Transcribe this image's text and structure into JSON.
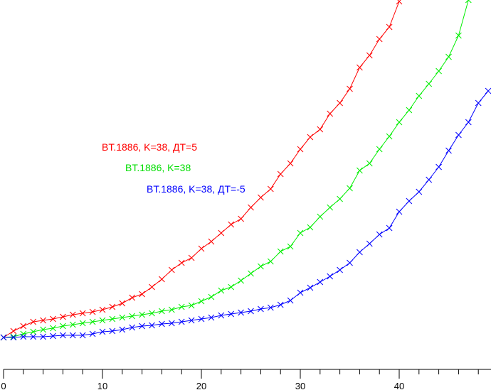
{
  "chart_data": {
    "type": "line",
    "title": "",
    "xlabel": "",
    "ylabel": "",
    "xlim": [
      0,
      49.3
    ],
    "ylim": [
      -45,
      475
    ],
    "xticks": [
      0,
      10,
      20,
      30,
      40
    ],
    "xtick_labels": [
      "0",
      "10",
      "20",
      "30",
      "40"
    ],
    "minor_xtick_step": 2,
    "grid": false,
    "series": [
      {
        "name": "BT.1886, K=38, ДТ=5",
        "color": "#ff0000",
        "x": [
          0,
          1,
          2,
          3,
          4,
          5,
          6,
          7,
          8,
          9,
          10,
          11,
          12,
          13,
          14,
          15,
          16,
          17,
          18,
          19,
          20,
          21,
          22,
          23,
          24,
          25,
          26,
          27,
          28,
          29,
          30,
          31,
          32,
          33,
          34,
          35,
          36,
          37,
          38,
          39,
          40
        ],
        "y": [
          0,
          9,
          16,
          22,
          24,
          26,
          29,
          32,
          34,
          36,
          39,
          43,
          48,
          56,
          61,
          71,
          82,
          95,
          105,
          112,
          125,
          135,
          147,
          159,
          167,
          183,
          197,
          209,
          230,
          245,
          265,
          282,
          293,
          315,
          330,
          350,
          380,
          397,
          420,
          437,
          473
        ]
      },
      {
        "name": "BT.1886, K=38",
        "color": "#00ee00",
        "x": [
          0,
          1,
          2,
          3,
          4,
          5,
          6,
          7,
          8,
          9,
          10,
          11,
          12,
          13,
          14,
          15,
          16,
          17,
          18,
          19,
          20,
          21,
          22,
          23,
          24,
          25,
          26,
          27,
          28,
          29,
          30,
          31,
          32,
          33,
          34,
          35,
          36,
          37,
          38,
          39,
          40,
          41,
          42,
          43,
          44,
          45,
          46,
          47
        ],
        "y": [
          0,
          1,
          5,
          8,
          11,
          13,
          16,
          18,
          20,
          22,
          24,
          26,
          28,
          30,
          32,
          34,
          37,
          39,
          43,
          45,
          51,
          57,
          66,
          71,
          80,
          90,
          100,
          107,
          121,
          128,
          147,
          155,
          170,
          183,
          195,
          210,
          235,
          245,
          265,
          283,
          303,
          320,
          340,
          357,
          375,
          395,
          425,
          475
        ]
      },
      {
        "name": "BT.1886, K=38, ДТ=-5",
        "color": "#0000ff",
        "x": [
          0,
          1,
          2,
          3,
          4,
          5,
          6,
          7,
          8,
          9,
          10,
          11,
          12,
          13,
          14,
          15,
          16,
          17,
          18,
          19,
          20,
          21,
          22,
          23,
          24,
          25,
          26,
          27,
          28,
          29,
          30,
          31,
          32,
          33,
          34,
          35,
          36,
          37,
          38,
          39,
          40,
          41,
          42,
          43,
          44,
          45,
          46,
          47,
          48,
          49
        ],
        "y": [
          0,
          0,
          1,
          1,
          1,
          2,
          3,
          3,
          3,
          5,
          8,
          9,
          11,
          14,
          16,
          17,
          19,
          20,
          22,
          24,
          26,
          28,
          31,
          33,
          35,
          37,
          40,
          42,
          46,
          52,
          63,
          70,
          78,
          86,
          95,
          105,
          120,
          132,
          145,
          154,
          177,
          192,
          205,
          222,
          240,
          263,
          285,
          303,
          330,
          347
        ]
      }
    ]
  }
}
